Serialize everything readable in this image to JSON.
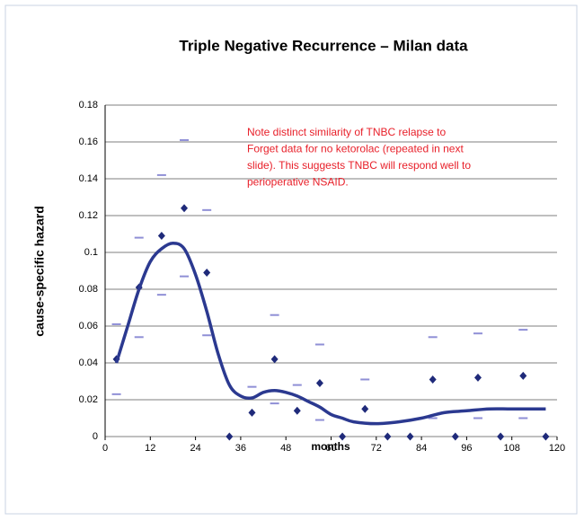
{
  "chart_data": {
    "type": "scatter",
    "title": "Triple Negative Recurrence – Milan data",
    "xlabel": "months",
    "ylabel": "cause-specific hazard",
    "annotation": [
      "Note distinct similarity of TNBC relapse to",
      "Forget data for no ketorolac (repeated in next",
      "slide). This suggests TNBC will respond well to",
      "perioperative  NSAID."
    ],
    "xlim": [
      0,
      120
    ],
    "ylim": [
      0,
      0.18
    ],
    "xticks": [
      0,
      12,
      24,
      36,
      48,
      60,
      72,
      84,
      96,
      108,
      120
    ],
    "yticks": [
      0,
      {
        "value": 0.02,
        "label": "0.02"
      },
      {
        "value": 0.04,
        "label": "0.04"
      },
      {
        "value": 0.06,
        "label": "0.06"
      },
      {
        "value": 0.08,
        "label": "0.08"
      },
      {
        "value": 0.1,
        "label": "0.1"
      },
      {
        "value": 0.12,
        "label": "0.12"
      },
      {
        "value": 0.14,
        "label": "0.14"
      },
      {
        "value": 0.16,
        "label": "0.16"
      },
      {
        "value": 0.18,
        "label": "0.18"
      }
    ],
    "grid": true,
    "points": {
      "color": "#1f2a7a",
      "x": [
        3,
        9,
        15,
        21,
        27,
        33,
        39,
        45,
        51,
        57,
        63,
        69,
        75,
        81,
        87,
        93,
        99,
        105,
        111,
        117
      ],
      "values": [
        0.042,
        0.081,
        0.109,
        0.124,
        0.089,
        0,
        0.013,
        0.042,
        0.014,
        0.029,
        0,
        0.015,
        0,
        0,
        0.031,
        0,
        0.032,
        0,
        0.033,
        0
      ],
      "upper": [
        0.061,
        0.108,
        0.142,
        0.161,
        0.123,
        null,
        0.027,
        0.066,
        0.028,
        0.05,
        null,
        0.031,
        null,
        null,
        0.054,
        null,
        0.056,
        null,
        0.058,
        null
      ],
      "lower": [
        0.023,
        0.054,
        0.077,
        0.087,
        0.055,
        null,
        null,
        0.018,
        null,
        0.009,
        null,
        null,
        null,
        null,
        0.01,
        null,
        0.01,
        null,
        0.01,
        null
      ],
      "bar_color": "#8f8fd6"
    },
    "curve": {
      "color": "#2b3990",
      "x": [
        3,
        6,
        9,
        12,
        15,
        18,
        21,
        24,
        27,
        30,
        33,
        36,
        39,
        42,
        45,
        48,
        51,
        54,
        57,
        60,
        63,
        66,
        72,
        78,
        84,
        90,
        96,
        102,
        108,
        117
      ],
      "values": [
        0.04,
        0.06,
        0.08,
        0.095,
        0.102,
        0.105,
        0.102,
        0.088,
        0.068,
        0.045,
        0.028,
        0.022,
        0.021,
        0.024,
        0.025,
        0.024,
        0.022,
        0.019,
        0.016,
        0.012,
        0.01,
        0.008,
        0.007,
        0.008,
        0.01,
        0.013,
        0.014,
        0.015,
        0.015,
        0.015
      ]
    }
  }
}
